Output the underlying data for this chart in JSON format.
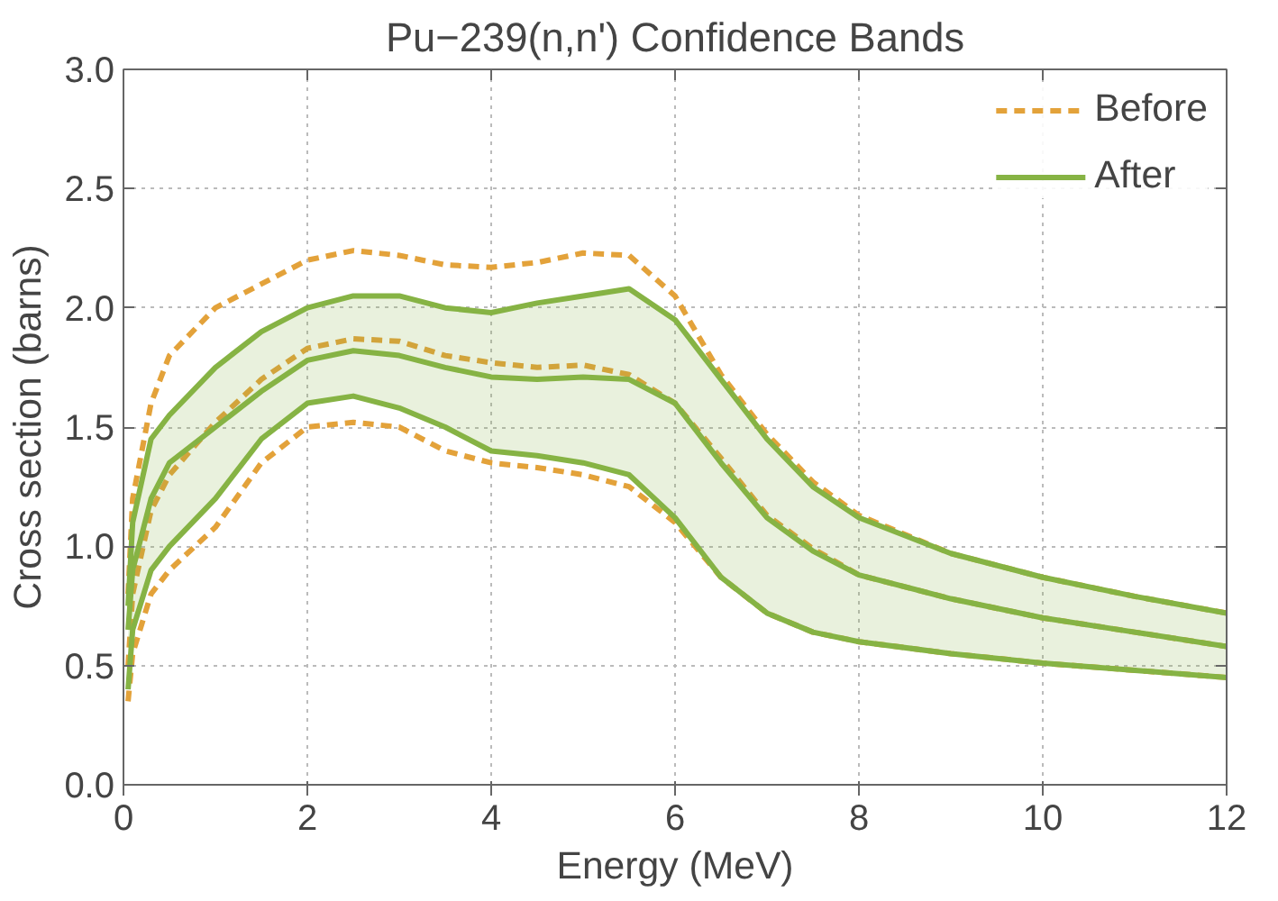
{
  "chart_data": {
    "type": "line",
    "title": "Pu−239(n,n') Confidence Bands",
    "xlabel": "Energy (MeV)",
    "ylabel": "Cross section (barns)",
    "x": [
      0.05,
      0.1,
      0.3,
      0.5,
      1,
      1.5,
      2,
      2.5,
      3,
      3.5,
      4,
      4.5,
      5,
      5.5,
      6,
      6.5,
      7,
      7.5,
      8,
      9,
      10,
      11,
      12
    ],
    "xlim": [
      0,
      12
    ],
    "xticks": [
      0,
      2,
      4,
      6,
      8,
      10,
      12
    ],
    "ylim": [
      0,
      3
    ],
    "yticks": [
      {
        "value": 0,
        "label": "0.0"
      },
      {
        "value": 0.5,
        "label": "0.5"
      },
      {
        "value": 1,
        "label": "1.0"
      },
      {
        "value": 1.5,
        "label": "1.5"
      },
      {
        "value": 2,
        "label": "2.0"
      },
      {
        "value": 2.5,
        "label": "2.5"
      },
      {
        "value": 3,
        "label": "3.0"
      }
    ],
    "grid": true,
    "legend": "top right",
    "marker": "none",
    "series": [
      {
        "name": "Before",
        "color": "#e3a23a",
        "line_style": "dashed",
        "values": [
          0.5,
          0.8,
          1.15,
          1.3,
          1.52,
          1.7,
          1.83,
          1.87,
          1.86,
          1.8,
          1.77,
          1.75,
          1.76,
          1.72,
          1.6,
          1.37,
          1.13,
          0.99,
          0.88,
          0.78,
          0.7,
          0.64,
          0.58
        ]
      },
      {
        "color": "#e3a23a",
        "line_style": "dashed",
        "values": [
          0.8,
          1.2,
          1.6,
          1.8,
          2.0,
          2.1,
          2.2,
          2.24,
          2.22,
          2.18,
          2.17,
          2.19,
          2.23,
          2.22,
          2.05,
          1.72,
          1.47,
          1.27,
          1.13,
          0.97,
          0.87,
          0.79,
          0.72
        ]
      },
      {
        "color": "#e3a23a",
        "line_style": "dashed",
        "values": [
          0.35,
          0.55,
          0.8,
          0.9,
          1.08,
          1.35,
          1.5,
          1.52,
          1.5,
          1.4,
          1.35,
          1.33,
          1.3,
          1.25,
          1.1,
          0.87,
          0.72,
          0.64,
          0.6,
          0.55,
          0.51,
          0.48,
          0.45
        ]
      },
      {
        "name": "After",
        "color": "#86b344",
        "line_style": "solid",
        "values": [
          0.65,
          0.9,
          1.2,
          1.35,
          1.5,
          1.65,
          1.78,
          1.82,
          1.8,
          1.75,
          1.71,
          1.7,
          1.71,
          1.7,
          1.6,
          1.35,
          1.12,
          0.98,
          0.88,
          0.78,
          0.7,
          0.64,
          0.58
        ],
        "lower": [
          0.4,
          0.65,
          0.9,
          1.0,
          1.2,
          1.45,
          1.6,
          1.63,
          1.58,
          1.5,
          1.4,
          1.38,
          1.35,
          1.3,
          1.12,
          0.87,
          0.72,
          0.64,
          0.6,
          0.55,
          0.51,
          0.48,
          0.45
        ],
        "upper": [
          0.75,
          1.1,
          1.45,
          1.55,
          1.75,
          1.9,
          2.0,
          2.05,
          2.05,
          2.0,
          1.98,
          2.02,
          2.05,
          2.08,
          1.95,
          1.7,
          1.45,
          1.25,
          1.12,
          0.97,
          0.87,
          0.79,
          0.72
        ]
      },
      {
        "color": "#86b344",
        "line_style": "solid",
        "values": [
          0.75,
          1.1,
          1.45,
          1.55,
          1.75,
          1.9,
          2.0,
          2.05,
          2.05,
          2.0,
          1.98,
          2.02,
          2.05,
          2.08,
          1.95,
          1.7,
          1.45,
          1.25,
          1.12,
          0.97,
          0.87,
          0.79,
          0.72
        ]
      },
      {
        "color": "#86b344",
        "line_style": "solid",
        "values": [
          0.4,
          0.65,
          0.9,
          1.0,
          1.2,
          1.45,
          1.6,
          1.63,
          1.58,
          1.5,
          1.4,
          1.38,
          1.35,
          1.3,
          1.12,
          0.87,
          0.72,
          0.64,
          0.6,
          0.55,
          0.51,
          0.48,
          0.45
        ]
      }
    ]
  }
}
